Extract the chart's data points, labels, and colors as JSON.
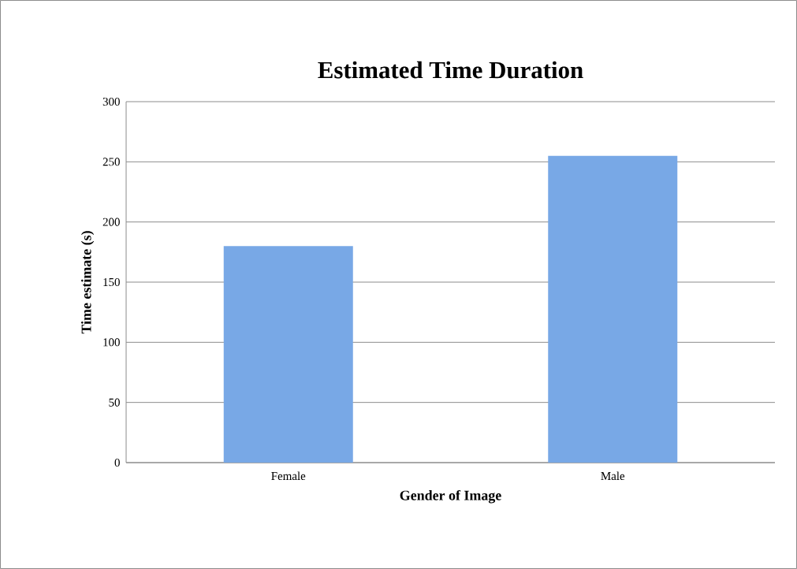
{
  "chart_data": {
    "type": "bar",
    "title": "Estimated Time Duration",
    "xlabel": "Gender of Image",
    "ylabel": "Time estimate (s)",
    "categories": [
      "Female",
      "Male"
    ],
    "values": [
      180,
      255
    ],
    "color": "#78a8e6",
    "ylim": [
      0,
      300
    ],
    "yticks": [
      0,
      50,
      100,
      150,
      200,
      250,
      300
    ],
    "grid": "y",
    "legend": false
  }
}
